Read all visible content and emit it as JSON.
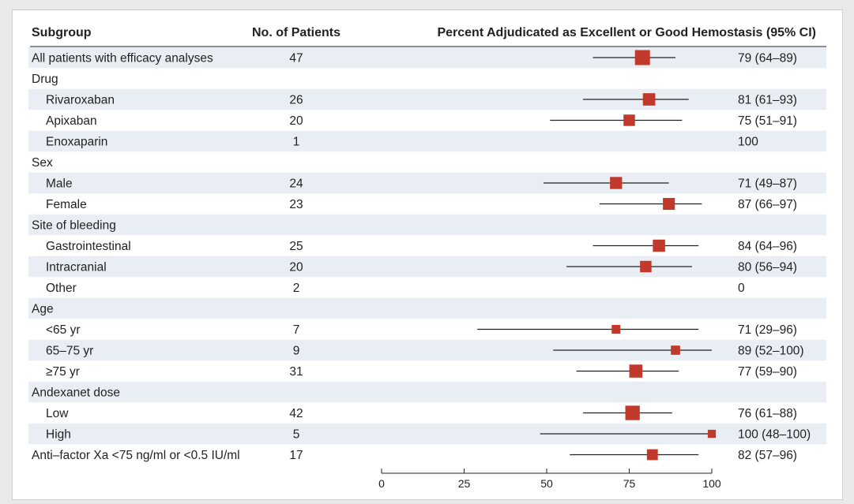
{
  "headers": {
    "subgroup": "Subgroup",
    "patients": "No. of Patients",
    "estimate": "Percent Adjudicated as Excellent or Good Hemostasis (95% CI)"
  },
  "colors": {
    "marker": "#c0392b",
    "line": "#222222",
    "stripe": "#e9eef4"
  },
  "chart_data": {
    "type": "forest",
    "xlim": [
      0,
      100
    ],
    "xticks": [
      0,
      25,
      50,
      75,
      100
    ],
    "rows": [
      {
        "label": "All patients with efficacy analyses",
        "indent": 0,
        "n": "47",
        "est": 79,
        "lo": 64,
        "hi": 89,
        "ci_text": "79 (64–89)"
      },
      {
        "label": "Drug",
        "indent": 0,
        "header": true
      },
      {
        "label": "Rivaroxaban",
        "indent": 1,
        "n": "26",
        "est": 81,
        "lo": 61,
        "hi": 93,
        "ci_text": "81 (61–93)"
      },
      {
        "label": "Apixaban",
        "indent": 1,
        "n": "20",
        "est": 75,
        "lo": 51,
        "hi": 91,
        "ci_text": "75 (51–91)"
      },
      {
        "label": "Enoxaparin",
        "indent": 1,
        "n": "1",
        "est": null,
        "lo": null,
        "hi": null,
        "ci_text": "100"
      },
      {
        "label": "Sex",
        "indent": 0,
        "header": true
      },
      {
        "label": "Male",
        "indent": 1,
        "n": "24",
        "est": 71,
        "lo": 49,
        "hi": 87,
        "ci_text": "71 (49–87)"
      },
      {
        "label": "Female",
        "indent": 1,
        "n": "23",
        "est": 87,
        "lo": 66,
        "hi": 97,
        "ci_text": "87 (66–97)"
      },
      {
        "label": "Site of bleeding",
        "indent": 0,
        "header": true
      },
      {
        "label": "Gastrointestinal",
        "indent": 1,
        "n": "25",
        "est": 84,
        "lo": 64,
        "hi": 96,
        "ci_text": "84 (64–96)"
      },
      {
        "label": "Intracranial",
        "indent": 1,
        "n": "20",
        "est": 80,
        "lo": 56,
        "hi": 94,
        "ci_text": "80 (56–94)"
      },
      {
        "label": "Other",
        "indent": 1,
        "n": "2",
        "est": null,
        "lo": null,
        "hi": null,
        "ci_text": "0"
      },
      {
        "label": "Age",
        "indent": 0,
        "header": true
      },
      {
        "label": "<65 yr",
        "indent": 1,
        "n": "7",
        "est": 71,
        "lo": 29,
        "hi": 96,
        "ci_text": "71 (29–96)"
      },
      {
        "label": "65–75 yr",
        "indent": 1,
        "n": "9",
        "est": 89,
        "lo": 52,
        "hi": 100,
        "ci_text": "89 (52–100)"
      },
      {
        "label": "≥75 yr",
        "indent": 1,
        "n": "31",
        "est": 77,
        "lo": 59,
        "hi": 90,
        "ci_text": "77 (59–90)"
      },
      {
        "label": "Andexanet dose",
        "indent": 0,
        "header": true
      },
      {
        "label": "Low",
        "indent": 1,
        "n": "42",
        "est": 76,
        "lo": 61,
        "hi": 88,
        "ci_text": "76 (61–88)"
      },
      {
        "label": "High",
        "indent": 1,
        "n": "5",
        "est": 100,
        "lo": 48,
        "hi": 100,
        "ci_text": "100 (48–100)"
      },
      {
        "label": "Anti–factor Xa <75 ng/ml or <0.5 IU/ml",
        "indent": 0,
        "n": "17",
        "est": 82,
        "lo": 57,
        "hi": 96,
        "ci_text": "82 (57–96)"
      }
    ]
  }
}
